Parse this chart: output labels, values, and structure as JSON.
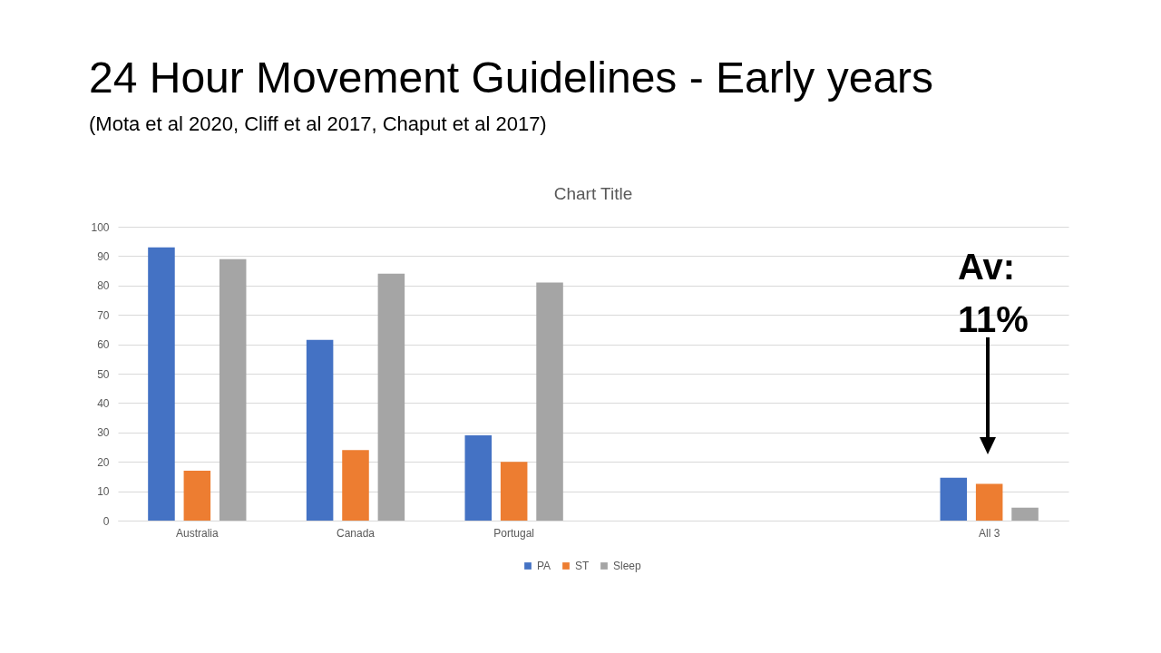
{
  "chart_data": {
    "type": "bar",
    "title": "24 Hour Movement Guidelines - Early years",
    "subtitle": "(Mota et al 2020, Cliff et al 2017, Chaput et al 2017)",
    "annotations": [
      "Chart Title",
      "Av: 11%"
    ],
    "categories": [
      "Australia",
      "Canada",
      "Portugal",
      null,
      null,
      "All 3"
    ],
    "series": [
      {
        "name": "PA",
        "color": "#4472c4",
        "values": [
          93,
          61.5,
          29,
          null,
          null,
          14.6
        ]
      },
      {
        "name": "ST",
        "color": "#ed7d31",
        "values": [
          17,
          24,
          20,
          null,
          null,
          12.5
        ]
      },
      {
        "name": "Sleep",
        "color": "#a5a5a5",
        "values": [
          89,
          84,
          81,
          null,
          null,
          4.4
        ]
      }
    ],
    "ylim": [
      0,
      100
    ],
    "yticks": [
      0,
      10,
      20,
      30,
      40,
      50,
      60,
      70,
      80,
      90,
      100
    ],
    "grid": "y",
    "legend": "bottom"
  }
}
